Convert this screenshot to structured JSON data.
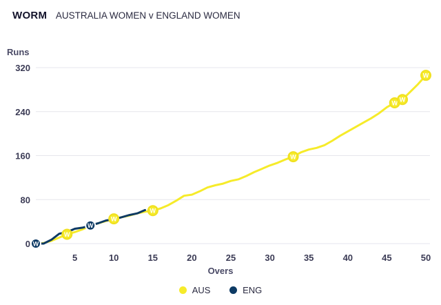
{
  "header": {
    "title": "WORM",
    "subtitle": "AUSTRALIA WOMEN v ENGLAND WOMEN"
  },
  "chart_data": {
    "type": "line",
    "title": "WORM",
    "subtitle": "AUSTRALIA WOMEN v ENGLAND WOMEN",
    "xlabel": "Overs",
    "ylabel": "Runs",
    "xlim": [
      0,
      50
    ],
    "ylim": [
      0,
      320
    ],
    "xticks": [
      5,
      10,
      15,
      20,
      25,
      30,
      35,
      40,
      45,
      50
    ],
    "yticks": [
      0,
      80,
      160,
      240,
      320
    ],
    "grid": "horizontal",
    "legend_position": "bottom",
    "wicket_marker_label": "W",
    "series": [
      {
        "name": "AUS",
        "color": "#f6eb2a",
        "wicket_marker_color": "#f6eb2a",
        "values": [
          [
            0,
            0
          ],
          [
            1,
            1
          ],
          [
            2,
            5
          ],
          [
            3,
            11
          ],
          [
            4,
            17
          ],
          [
            5,
            21
          ],
          [
            6,
            26
          ],
          [
            7,
            32
          ],
          [
            8,
            37
          ],
          [
            9,
            41
          ],
          [
            10,
            45
          ],
          [
            11,
            48
          ],
          [
            12,
            51
          ],
          [
            13,
            55
          ],
          [
            14,
            58
          ],
          [
            15,
            60
          ],
          [
            16,
            64
          ],
          [
            17,
            70
          ],
          [
            18,
            78
          ],
          [
            19,
            87
          ],
          [
            20,
            89
          ],
          [
            21,
            95
          ],
          [
            22,
            102
          ],
          [
            23,
            106
          ],
          [
            24,
            109
          ],
          [
            25,
            114
          ],
          [
            26,
            117
          ],
          [
            27,
            123
          ],
          [
            28,
            130
          ],
          [
            29,
            136
          ],
          [
            30,
            142
          ],
          [
            31,
            147
          ],
          [
            32,
            153
          ],
          [
            33,
            158
          ],
          [
            34,
            166
          ],
          [
            35,
            171
          ],
          [
            36,
            174
          ],
          [
            37,
            179
          ],
          [
            38,
            187
          ],
          [
            39,
            196
          ],
          [
            40,
            204
          ],
          [
            41,
            212
          ],
          [
            42,
            220
          ],
          [
            43,
            228
          ],
          [
            44,
            237
          ],
          [
            45,
            248
          ],
          [
            46,
            256
          ],
          [
            47,
            262
          ],
          [
            48,
            276
          ],
          [
            49,
            290
          ],
          [
            50,
            306
          ]
        ],
        "wickets": [
          [
            4,
            17
          ],
          [
            10,
            45
          ],
          [
            15,
            60
          ],
          [
            33,
            158
          ],
          [
            46,
            256
          ],
          [
            47,
            262
          ],
          [
            50,
            306
          ]
        ]
      },
      {
        "name": "ENG",
        "color": "#0d3a64",
        "wicket_marker_color": "#0d3a64",
        "values": [
          [
            0,
            0
          ],
          [
            1,
            0
          ],
          [
            2,
            7
          ],
          [
            3,
            18
          ],
          [
            4,
            21
          ],
          [
            5,
            27
          ],
          [
            6,
            29
          ],
          [
            7,
            33
          ],
          [
            8,
            37
          ],
          [
            9,
            42
          ],
          [
            10,
            44
          ],
          [
            11,
            48
          ],
          [
            12,
            52
          ],
          [
            13,
            55
          ],
          [
            14,
            61
          ]
        ],
        "wickets": [
          [
            0,
            0
          ],
          [
            7,
            33
          ]
        ]
      }
    ]
  },
  "legend": {
    "items": [
      {
        "label": "AUS",
        "color": "#f6eb2a"
      },
      {
        "label": "ENG",
        "color": "#0d3a64"
      }
    ]
  }
}
